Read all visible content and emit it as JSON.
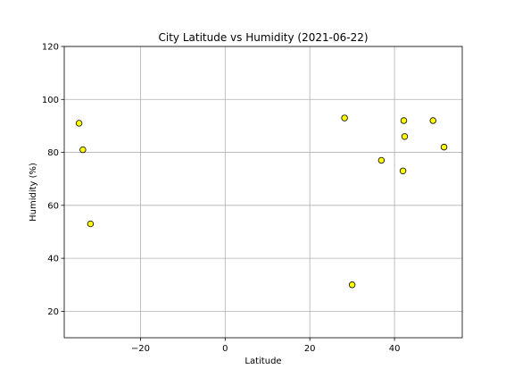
{
  "chart_data": {
    "type": "scatter",
    "title": "City Latitude vs Humidity (2021-06-22)",
    "xlabel": "Latitude",
    "ylabel": "Humidity (%)",
    "xlim": [
      -38,
      56
    ],
    "ylim": [
      10,
      120
    ],
    "xticks": [
      -20,
      0,
      20,
      40
    ],
    "yticks": [
      20,
      40,
      60,
      80,
      100,
      120
    ],
    "grid": true,
    "marker_color": "#ffff00",
    "marker_edge_color": "#000000",
    "points": [
      {
        "x": -34.5,
        "y": 91
      },
      {
        "x": -33.6,
        "y": 81
      },
      {
        "x": -31.8,
        "y": 53
      },
      {
        "x": 28.2,
        "y": 93
      },
      {
        "x": 30.0,
        "y": 30
      },
      {
        "x": 36.9,
        "y": 77
      },
      {
        "x": 42.0,
        "y": 73
      },
      {
        "x": 42.2,
        "y": 92
      },
      {
        "x": 42.4,
        "y": 86
      },
      {
        "x": 49.1,
        "y": 92
      },
      {
        "x": 51.7,
        "y": 82
      }
    ]
  }
}
